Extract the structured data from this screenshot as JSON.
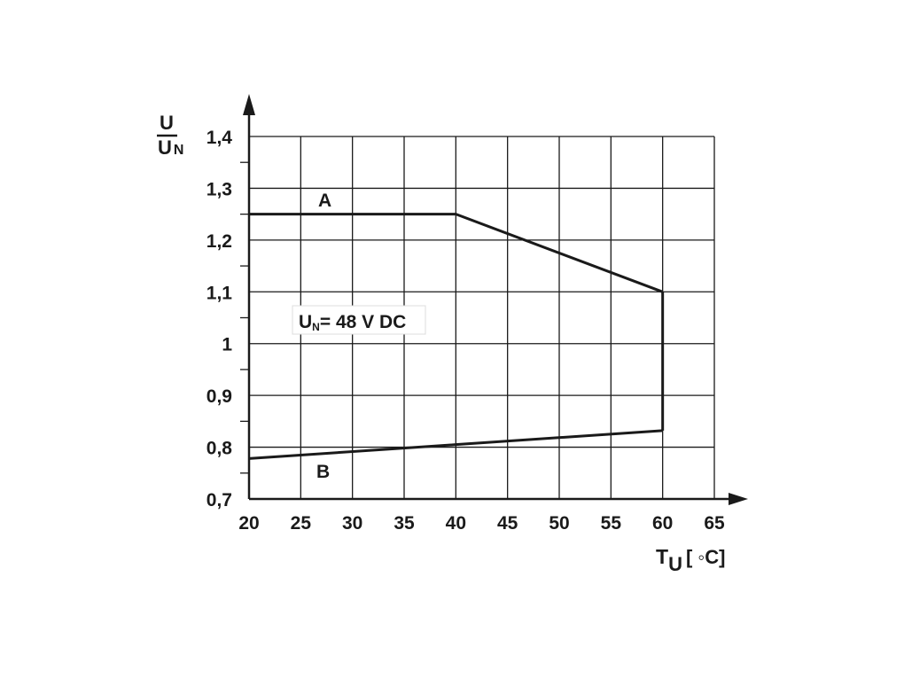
{
  "chart_data": {
    "type": "line",
    "x_ticks": [
      "20",
      "25",
      "30",
      "35",
      "40",
      "45",
      "50",
      "55",
      "60",
      "65"
    ],
    "y_ticks": [
      "0,7",
      "0,8",
      "0,9",
      "1",
      "1,1",
      "1,2",
      "1,3",
      "1,4"
    ],
    "xlim": [
      20,
      65
    ],
    "ylim": [
      0.7,
      1.4
    ],
    "grid": true,
    "y_axis_label": {
      "main": "U",
      "denominator": "U",
      "denominator_sub": "N"
    },
    "x_axis_label": {
      "main": "T",
      "sub": "U",
      "unit": "[ ◦C]"
    },
    "annotation": {
      "main": "U",
      "sub": "N",
      "rest": "= 48 V DC"
    },
    "series": [
      {
        "name": "A",
        "label": "A",
        "x": [
          20,
          40,
          60
        ],
        "y": [
          1.25,
          1.25,
          1.1
        ]
      },
      {
        "name": "B",
        "label": "B",
        "x": [
          20,
          40,
          60
        ],
        "y": [
          0.778,
          0.805,
          0.832
        ]
      }
    ],
    "closing_segment": {
      "x": [
        60,
        60
      ],
      "y": [
        1.1,
        0.832
      ]
    },
    "colors": {
      "line": "#1a1a1a",
      "grid": "#1a1a1a",
      "background": "#ffffff"
    }
  }
}
